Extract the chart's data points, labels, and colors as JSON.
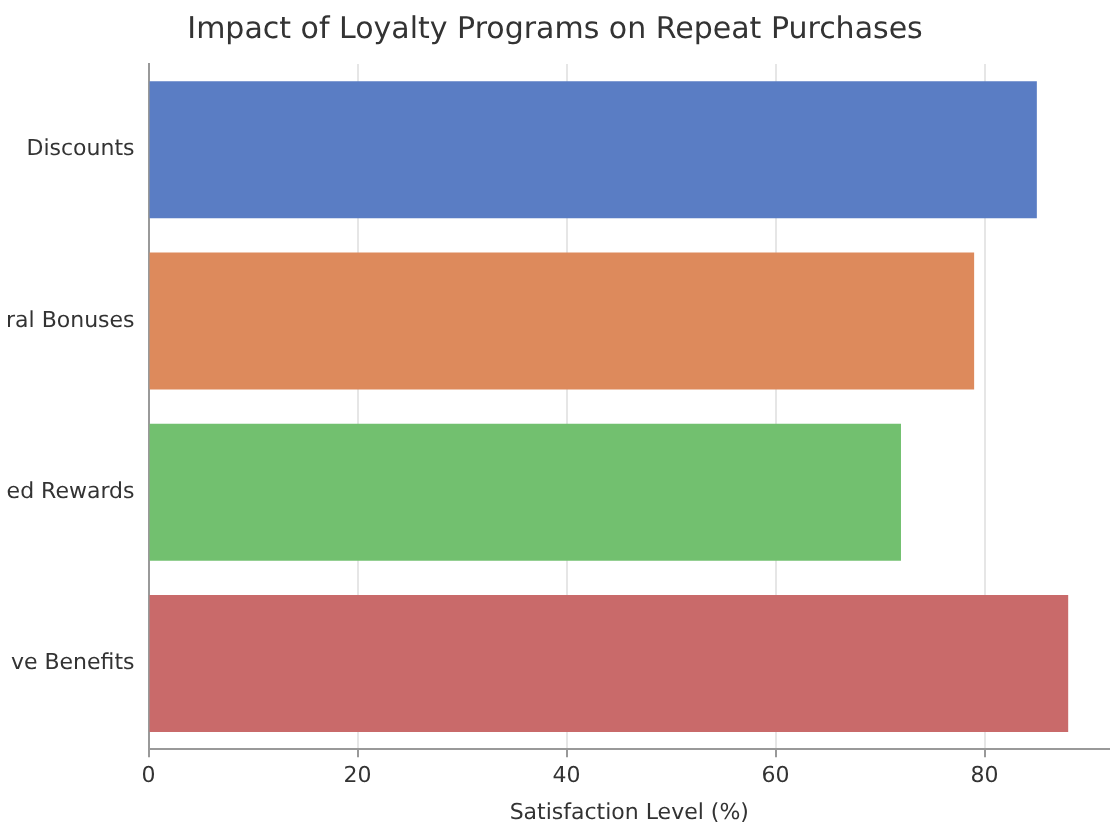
{
  "chart_data": {
    "type": "bar",
    "orientation": "horizontal",
    "title": "Impact of Loyalty Programs on Repeat Purchases",
    "xlabel": "Satisfaction Level (%)",
    "categories": [
      "Discounts",
      "ral Bonuses",
      "ed Rewards",
      "ve Benefits"
    ],
    "values": [
      85,
      79,
      72,
      88
    ],
    "colors": [
      "#5a7dc4",
      "#dd8a5c",
      "#72c06f",
      "#c96a6a"
    ],
    "xlim": [
      0,
      92
    ],
    "xticks": [
      0,
      20,
      40,
      60,
      80
    ],
    "grid": "x",
    "legend": false
  }
}
